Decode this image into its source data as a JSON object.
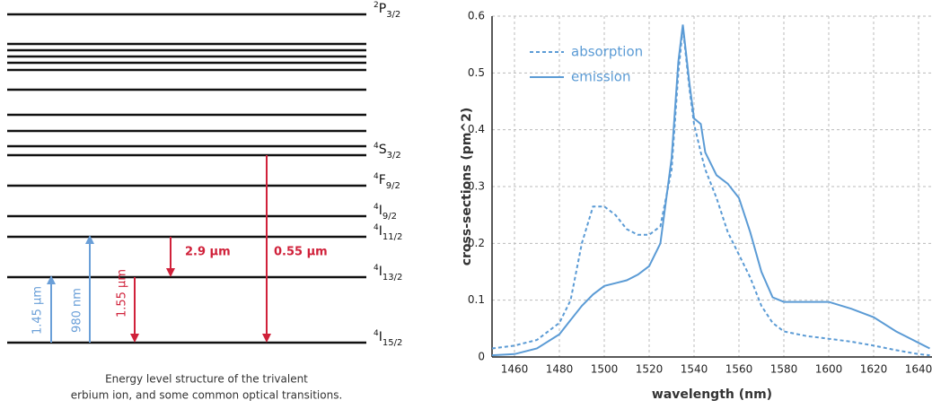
{
  "diagram": {
    "levels": [
      {
        "sup": "2",
        "term": "P",
        "sub": "3/2"
      },
      null,
      null,
      null,
      null,
      null,
      null,
      null,
      null,
      null,
      {
        "sup": "4",
        "term": "S",
        "sub": "3/2"
      },
      {
        "sup": "4",
        "term": "F",
        "sub": "9/2"
      },
      {
        "sup": "4",
        "term": "I",
        "sub": "9/2"
      },
      {
        "sup": "4",
        "term": "I",
        "sub": "11/2"
      },
      {
        "sup": "4",
        "term": "I",
        "sub": "13/2"
      },
      {
        "sup": "4",
        "term": "I",
        "sub": "15/2"
      }
    ],
    "transitions": [
      {
        "label": "1.45 µm"
      },
      {
        "label": "980 nm"
      },
      {
        "label": "1.55 µm"
      },
      {
        "label": "2.9 µm"
      },
      {
        "label": "0.55 µm"
      }
    ],
    "caption": [
      "Energy level structure of the trivalent",
      "erbium ion, and some common optical transitions."
    ]
  },
  "chart_data": {
    "type": "line",
    "x_label": "wavelength (nm)",
    "y_label": "cross-sections (pm^2)",
    "x": [
      1450,
      1460,
      1470,
      1480,
      1485,
      1490,
      1495,
      1500,
      1505,
      1510,
      1515,
      1520,
      1525,
      1530,
      1533,
      1535,
      1538,
      1540,
      1543,
      1545,
      1550,
      1555,
      1560,
      1565,
      1570,
      1575,
      1580,
      1590,
      1600,
      1610,
      1620,
      1630,
      1640,
      1645
    ],
    "series": [
      {
        "name": "absorption",
        "color": "#5b9bd5",
        "style": "dashed",
        "values": [
          0.015,
          0.02,
          0.03,
          0.06,
          0.1,
          0.2,
          0.265,
          0.265,
          0.25,
          0.225,
          0.215,
          0.215,
          0.23,
          0.33,
          0.5,
          0.58,
          0.47,
          0.41,
          0.36,
          0.33,
          0.28,
          0.22,
          0.18,
          0.14,
          0.09,
          0.06,
          0.045,
          0.037,
          0.032,
          0.027,
          0.02,
          0.012,
          0.005,
          0.003
        ]
      },
      {
        "name": "emission",
        "color": "#5b9bd5",
        "style": "solid",
        "values": [
          0.003,
          0.005,
          0.015,
          0.04,
          0.065,
          0.09,
          0.11,
          0.125,
          0.13,
          0.135,
          0.145,
          0.16,
          0.2,
          0.35,
          0.52,
          0.585,
          0.48,
          0.42,
          0.41,
          0.36,
          0.32,
          0.305,
          0.28,
          0.22,
          0.15,
          0.105,
          0.097,
          0.097,
          0.097,
          0.085,
          0.07,
          0.045,
          0.025,
          0.015
        ]
      }
    ],
    "xlim": [
      1450,
      1646
    ],
    "ylim": [
      0,
      0.6
    ],
    "xticks": [
      1460,
      1480,
      1500,
      1520,
      1540,
      1560,
      1580,
      1600,
      1620,
      1640
    ],
    "yticks": [
      0,
      0.1,
      0.2,
      0.3,
      0.4,
      0.5,
      0.6
    ],
    "grid": true,
    "legend": "upper left"
  }
}
